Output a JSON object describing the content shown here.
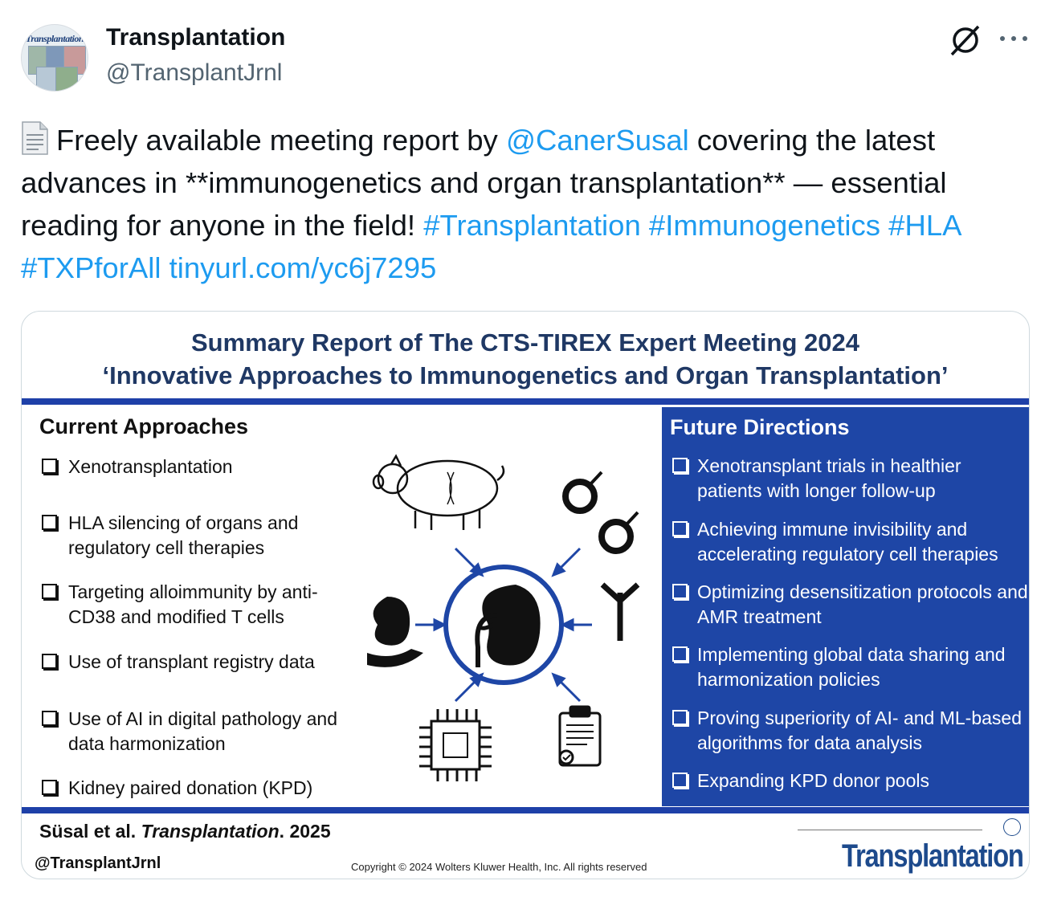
{
  "tweet": {
    "author_name": "Transplantation",
    "author_handle": "@TransplantJrnl",
    "avatar_brand": "Transplantation",
    "text_part1": "Freely available meeting report by ",
    "mention": "@CanerSusal",
    "text_part2": " covering the latest advances in **immunogenetics and organ transplantation** — essential reading for anyone in the field! ",
    "hashtags": [
      "#Transplantation",
      "#Immunogenetics",
      "#HLA",
      "#TXPforAll"
    ],
    "link": "tinyurl.com/yc6j7295"
  },
  "infographic": {
    "title_line1": "Summary Report of The CTS-TIREX Expert Meeting 2024",
    "title_line2": "‘Innovative Approaches to Immunogenetics and Organ Transplantation’",
    "current_heading": "Current Approaches",
    "current_items": [
      "Xenotransplantation",
      "HLA silencing of organs and regulatory cell therapies",
      "Targeting alloimmunity by anti-CD38 and modified T cells",
      "Use of transplant registry data",
      "Use of AI in digital pathology and data harmonization",
      "Kidney paired donation (KPD)"
    ],
    "future_heading": "Future Directions",
    "future_items": [
      "Xenotransplant trials in healthier patients with longer follow-up",
      "Achieving immune invisibility and accelerating regulatory cell therapies",
      "Optimizing desensitization protocols and AMR treatment",
      "Implementing global data sharing and harmonization policies",
      "Proving superiority of AI- and ML-based algorithms for data analysis",
      "Expanding KPD donor pools"
    ],
    "citation_authors": "Süsal et al. ",
    "citation_journal": "Transplantation",
    "citation_year": ". 2025",
    "handle": "@TransplantJrnl",
    "copyright": "Copyright © 2024  Wolters Kluwer Health, Inc. All rights reserved",
    "journal_logo": "Transplantation",
    "icons": [
      "pig-icon",
      "gender-symbols-icon",
      "kidney-icon",
      "antibody-icon",
      "kidney-hand-icon",
      "chip-icon",
      "clipboard-icon"
    ]
  },
  "colors": {
    "link": "#1d9bf0",
    "panel_blue": "#1e46a6",
    "title_navy": "#1f3864"
  }
}
